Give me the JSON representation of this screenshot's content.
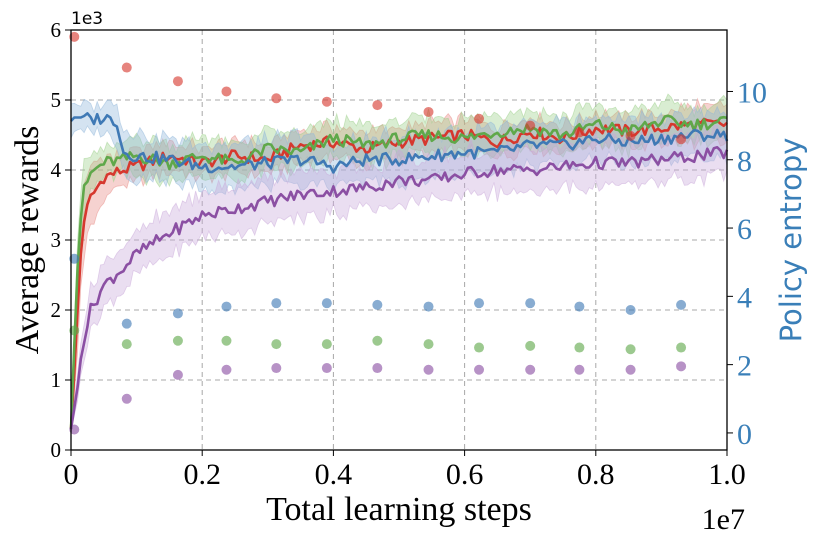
{
  "chart_data": {
    "type": "line",
    "title": "",
    "xlabel": "Total learning steps",
    "ylabel": "Average rewards",
    "y2label": "Policy entropy",
    "x_offset_text": "1e7",
    "y_offset_text": "1e3",
    "xlim": [
      0,
      1.0
    ],
    "ylim": [
      0,
      6
    ],
    "y2lim": [
      -0.5,
      11.8
    ],
    "x_ticks": [
      0,
      0.2,
      0.4,
      0.6,
      0.8,
      1.0
    ],
    "x_tick_labels": [
      "0",
      "0.2",
      "0.4",
      "0.6",
      "0.8",
      "1.0"
    ],
    "y_ticks": [
      0,
      1,
      2,
      3,
      4,
      5,
      6
    ],
    "y_tick_labels": [
      "0",
      "1",
      "2",
      "3",
      "4",
      "5",
      "6"
    ],
    "y2_ticks": [
      0,
      2,
      4,
      6,
      8,
      10
    ],
    "y2_tick_labels": [
      "0",
      "2",
      "4",
      "6",
      "8",
      "10"
    ],
    "grid": true,
    "colors": {
      "axis_right": "#3a7fb8",
      "frame": "#000000",
      "grid": "#a8a8a8"
    },
    "reward_series": [
      {
        "name": "red",
        "color": "#d6382e",
        "band_color": "#e88a83",
        "x": [
          0,
          0.005,
          0.01,
          0.015,
          0.02,
          0.03,
          0.05,
          0.08,
          0.1,
          0.15,
          0.2,
          0.25,
          0.3,
          0.35,
          0.4,
          0.45,
          0.5,
          0.55,
          0.6,
          0.65,
          0.7,
          0.75,
          0.8,
          0.85,
          0.9,
          0.95,
          1.0
        ],
        "mean": [
          0.3,
          1.1,
          2.0,
          2.8,
          3.3,
          3.6,
          3.9,
          4.0,
          4.05,
          4.2,
          4.1,
          4.2,
          4.15,
          4.35,
          4.4,
          4.3,
          4.4,
          4.45,
          4.5,
          4.4,
          4.55,
          4.45,
          4.6,
          4.55,
          4.6,
          4.65,
          4.65
        ],
        "band": [
          0.05,
          0.25,
          0.5,
          0.55,
          0.5,
          0.4,
          0.25,
          0.2,
          0.2,
          0.2,
          0.2,
          0.2,
          0.2,
          0.2,
          0.2,
          0.2,
          0.2,
          0.2,
          0.2,
          0.2,
          0.2,
          0.2,
          0.2,
          0.2,
          0.2,
          0.25,
          0.25
        ]
      },
      {
        "name": "green",
        "color": "#5fa84a",
        "band_color": "#9bd08a",
        "x": [
          0,
          0.005,
          0.01,
          0.015,
          0.02,
          0.03,
          0.05,
          0.08,
          0.1,
          0.15,
          0.2,
          0.25,
          0.3,
          0.35,
          0.4,
          0.45,
          0.5,
          0.55,
          0.6,
          0.65,
          0.7,
          0.75,
          0.8,
          0.85,
          0.9,
          0.95,
          1.0
        ],
        "mean": [
          0.3,
          1.5,
          2.6,
          3.3,
          3.7,
          3.95,
          4.1,
          4.15,
          4.2,
          4.1,
          4.2,
          4.1,
          4.3,
          4.25,
          4.45,
          4.35,
          4.45,
          4.5,
          4.45,
          4.55,
          4.6,
          4.5,
          4.65,
          4.55,
          4.7,
          4.65,
          4.7
        ],
        "band": [
          0.05,
          0.2,
          0.35,
          0.35,
          0.3,
          0.25,
          0.2,
          0.2,
          0.25,
          0.25,
          0.25,
          0.25,
          0.25,
          0.25,
          0.25,
          0.25,
          0.25,
          0.25,
          0.25,
          0.25,
          0.25,
          0.25,
          0.25,
          0.25,
          0.25,
          0.25,
          0.25
        ]
      },
      {
        "name": "blue",
        "color": "#3f79b5",
        "band_color": "#8fb6da",
        "x": [
          0,
          0.005,
          0.01,
          0.015,
          0.02,
          0.03,
          0.05,
          0.07,
          0.08,
          0.1,
          0.15,
          0.2,
          0.25,
          0.3,
          0.35,
          0.4,
          0.45,
          0.5,
          0.55,
          0.6,
          0.65,
          0.7,
          0.75,
          0.8,
          0.85,
          0.9,
          0.95,
          1.0
        ],
        "mean": [
          4.7,
          4.75,
          4.75,
          4.75,
          4.75,
          4.72,
          4.75,
          4.7,
          4.25,
          4.2,
          4.15,
          4.05,
          4.05,
          4.1,
          4.15,
          4.05,
          4.15,
          4.15,
          4.2,
          4.25,
          4.25,
          4.35,
          4.35,
          4.45,
          4.4,
          4.45,
          4.5,
          4.5
        ],
        "band": [
          0.2,
          0.2,
          0.2,
          0.2,
          0.2,
          0.2,
          0.2,
          0.25,
          0.3,
          0.3,
          0.3,
          0.3,
          0.3,
          0.3,
          0.3,
          0.3,
          0.3,
          0.3,
          0.3,
          0.3,
          0.3,
          0.3,
          0.3,
          0.3,
          0.3,
          0.3,
          0.3,
          0.3
        ]
      },
      {
        "name": "purple",
        "color": "#8b4fa3",
        "band_color": "#c9a8d9",
        "x": [
          0,
          0.005,
          0.01,
          0.015,
          0.02,
          0.03,
          0.05,
          0.08,
          0.1,
          0.15,
          0.2,
          0.25,
          0.3,
          0.35,
          0.4,
          0.45,
          0.5,
          0.55,
          0.6,
          0.65,
          0.7,
          0.75,
          0.8,
          0.85,
          0.9,
          0.95,
          1.0
        ],
        "mean": [
          0.3,
          0.6,
          0.9,
          1.3,
          1.6,
          2.0,
          2.35,
          2.6,
          2.8,
          3.1,
          3.35,
          3.45,
          3.55,
          3.65,
          3.7,
          3.75,
          3.85,
          3.85,
          3.95,
          4.0,
          4.0,
          4.05,
          4.1,
          4.1,
          4.15,
          4.2,
          4.25
        ],
        "band": [
          0.05,
          0.1,
          0.15,
          0.2,
          0.25,
          0.3,
          0.3,
          0.3,
          0.3,
          0.3,
          0.3,
          0.3,
          0.3,
          0.3,
          0.3,
          0.3,
          0.3,
          0.3,
          0.3,
          0.3,
          0.3,
          0.3,
          0.3,
          0.3,
          0.3,
          0.3,
          0.3
        ]
      }
    ],
    "entropy_series": [
      {
        "name": "red",
        "color": "#d6382e",
        "x": [
          0.005,
          0.085,
          0.163,
          0.237,
          0.313,
          0.39,
          0.467,
          0.545,
          0.622,
          0.7,
          0.775,
          0.853,
          0.93
        ],
        "y": [
          11.6,
          10.7,
          10.3,
          10.0,
          9.8,
          9.7,
          9.6,
          9.4,
          9.2,
          9.0,
          8.8,
          8.7,
          8.6
        ]
      },
      {
        "name": "blue",
        "color": "#3f79b5",
        "x": [
          0.005,
          0.085,
          0.163,
          0.237,
          0.313,
          0.39,
          0.467,
          0.545,
          0.622,
          0.7,
          0.775,
          0.853,
          0.93
        ],
        "y": [
          5.1,
          3.2,
          3.5,
          3.7,
          3.8,
          3.8,
          3.75,
          3.7,
          3.8,
          3.8,
          3.7,
          3.6,
          3.75
        ]
      },
      {
        "name": "green",
        "color": "#5fa84a",
        "x": [
          0.005,
          0.085,
          0.163,
          0.237,
          0.313,
          0.39,
          0.467,
          0.545,
          0.622,
          0.7,
          0.775,
          0.853,
          0.93
        ],
        "y": [
          3.0,
          2.6,
          2.7,
          2.7,
          2.6,
          2.6,
          2.7,
          2.6,
          2.5,
          2.55,
          2.5,
          2.45,
          2.5
        ]
      },
      {
        "name": "purple",
        "color": "#8b4fa3",
        "x": [
          0.005,
          0.085,
          0.163,
          0.237,
          0.313,
          0.39,
          0.467,
          0.545,
          0.622,
          0.7,
          0.775,
          0.853,
          0.93
        ],
        "y": [
          0.1,
          1.0,
          1.7,
          1.85,
          1.9,
          1.9,
          1.9,
          1.85,
          1.85,
          1.85,
          1.85,
          1.85,
          1.95
        ]
      }
    ]
  }
}
